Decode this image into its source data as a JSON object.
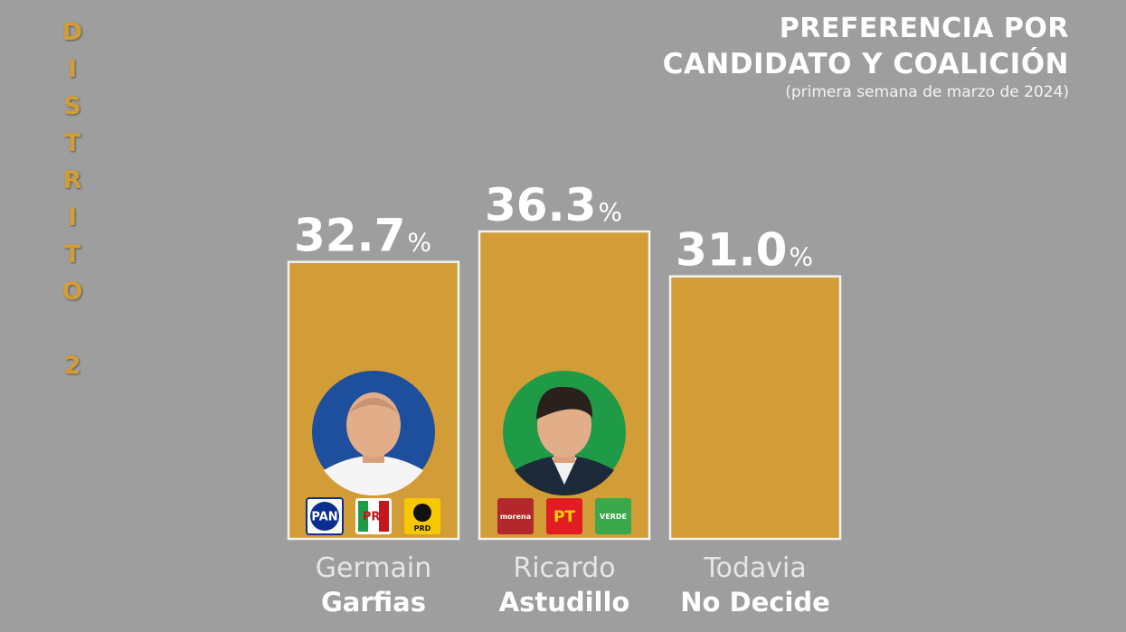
{
  "side_title": [
    "D",
    "I",
    "S",
    "T",
    "R",
    "I",
    "T",
    "O",
    "",
    "2"
  ],
  "header": {
    "line1": "PREFERENCIA POR",
    "line2": "CANDIDATO Y COALICIÓN",
    "subtitle": "(primera semana de marzo de 2024)"
  },
  "colors": {
    "background": "#9e9e9e",
    "bar": "#d29d37",
    "bar_border": "#f2f2f2",
    "photo_blue": "#1e4f9c",
    "photo_green": "#1f9b48"
  },
  "chart_data": {
    "type": "bar",
    "categories": [
      "Germain Garfias",
      "Ricardo Astudillo",
      "Todavía No Decide"
    ],
    "values": [
      32.7,
      36.3,
      31.0
    ],
    "value_labels": [
      "32.7",
      "36.3",
      "31.0"
    ],
    "unit": "%",
    "label_lines": [
      [
        "Germain",
        "Garfias"
      ],
      [
        "Ricardo",
        "Astudillo"
      ],
      [
        "Todavia",
        "No Decide"
      ]
    ],
    "candidate_photos": [
      "germain-photo",
      "ricardo-photo",
      null
    ],
    "party_logos": [
      [
        "PAN",
        "PRI",
        "PRD"
      ],
      [
        "morena",
        "PT",
        "VERDE"
      ],
      []
    ],
    "ylim": [
      0,
      36.3
    ],
    "grid": false,
    "legend": "none"
  }
}
